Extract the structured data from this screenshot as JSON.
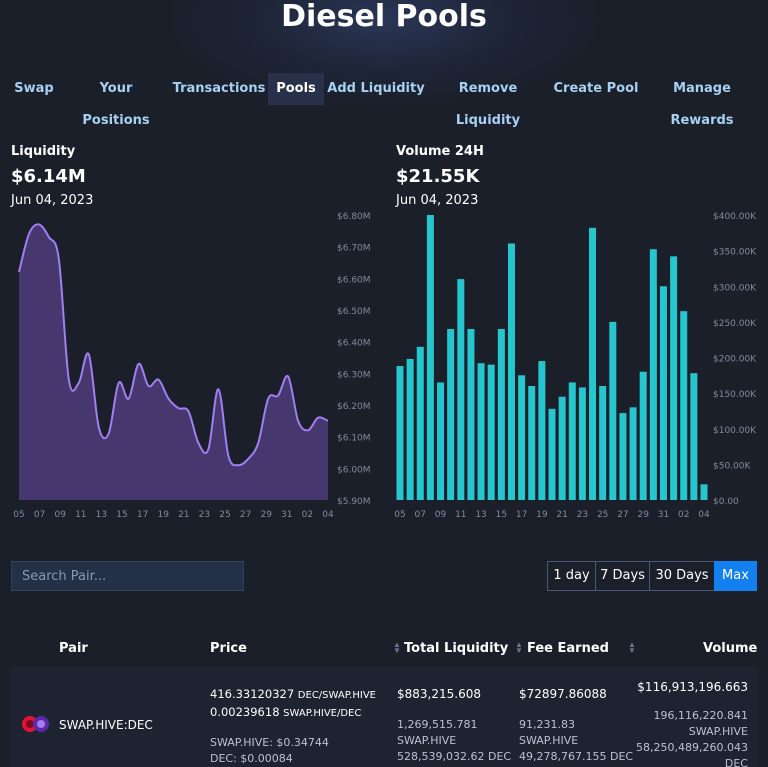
{
  "page": {
    "title": "Diesel Pools"
  },
  "nav": {
    "tabs": [
      {
        "label": "Swap"
      },
      {
        "label": "Your Positions"
      },
      {
        "label": "Transactions"
      },
      {
        "label": "Pools",
        "active": true
      },
      {
        "label": "Add Liquidity"
      },
      {
        "label": "Remove Liquidity"
      },
      {
        "label": "Create Pool"
      },
      {
        "label": "Manage Rewards"
      }
    ]
  },
  "liquidity": {
    "label": "Liquidity",
    "value": "$6.14M",
    "date": "Jun 04, 2023"
  },
  "volume": {
    "label": "Volume 24H",
    "value": "$21.55K",
    "date": "Jun 04, 2023"
  },
  "colors": {
    "accent": "#1380f0",
    "area_line": "#a07ff0",
    "area_fill": "#46376e",
    "bar": "#26c6cf",
    "nav_text": "#a7d0f2"
  },
  "chart_data": [
    {
      "type": "area",
      "title": "Liquidity",
      "x_tick_labels": [
        "05",
        "07",
        "09",
        "11",
        "13",
        "15",
        "17",
        "19",
        "21",
        "23",
        "25",
        "27",
        "29",
        "31",
        "02",
        "04"
      ],
      "y_tick_labels": [
        "$5.90M",
        "$6.00M",
        "$6.10M",
        "$6.20M",
        "$6.30M",
        "$6.40M",
        "$6.50M",
        "$6.60M",
        "$6.70M",
        "$6.80M"
      ],
      "ylim": [
        5.9,
        6.8
      ],
      "y_unit": "$M",
      "values": [
        6.62,
        6.74,
        6.77,
        6.73,
        6.66,
        6.28,
        6.27,
        6.36,
        6.13,
        6.11,
        6.27,
        6.22,
        6.33,
        6.26,
        6.28,
        6.22,
        6.19,
        6.18,
        6.08,
        6.06,
        6.25,
        6.04,
        6.01,
        6.03,
        6.08,
        6.22,
        6.23,
        6.29,
        6.15,
        6.12,
        6.16,
        6.15
      ]
    },
    {
      "type": "bar",
      "title": "Volume 24H",
      "x_tick_labels": [
        "05",
        "07",
        "09",
        "11",
        "13",
        "15",
        "17",
        "19",
        "21",
        "23",
        "25",
        "27",
        "29",
        "31",
        "02",
        "04"
      ],
      "y_tick_labels": [
        "$0.00",
        "$50.00K",
        "$100.00K",
        "$150.00K",
        "$200.00K",
        "$250.00K",
        "$300.00K",
        "$350.00K",
        "$400.00K"
      ],
      "ylim": [
        0,
        400
      ],
      "y_unit": "$K",
      "values": [
        188,
        198,
        215,
        400,
        165,
        240,
        310,
        240,
        192,
        190,
        240,
        360,
        175,
        160,
        195,
        128,
        145,
        165,
        158,
        382,
        160,
        250,
        122,
        130,
        180,
        352,
        300,
        342,
        265,
        178,
        22
      ]
    }
  ],
  "search": {
    "placeholder": "Search Pair..."
  },
  "range": {
    "options": [
      {
        "label": "1 day"
      },
      {
        "label": "7 Days"
      },
      {
        "label": "30 Days"
      },
      {
        "label": "Max",
        "active": true
      }
    ]
  },
  "table": {
    "headers": {
      "pair": "Pair",
      "price": "Price",
      "total_liquidity": "Total Liquidity",
      "fee_earned": "Fee Earned",
      "volume": "Volume"
    },
    "rows": [
      {
        "pair": "SWAP.HIVE:DEC",
        "price_line1_num": "416.33120327",
        "price_line1_unit": "DEC/SWAP.HIVE",
        "price_line2_num": "0.00239618",
        "price_line2_unit": "SWAP.HIVE/DEC",
        "price_usd1": "SWAP.HIVE: $0.34744",
        "price_usd2": "DEC: $0.00084",
        "total_liquidity": "$883,215.608",
        "liq_amount1": "1,269,515.781",
        "liq_token1": "SWAP.HIVE",
        "liq_amount2": "528,539,032.62 DEC",
        "fee_earned": "$72897.86088",
        "fee_amount1": "91,231.83",
        "fee_token1": "SWAP.HIVE",
        "fee_amount2": "49,278,767.155 DEC",
        "volume": "$116,913,196.663",
        "vol_amount1": "196,116,220.841",
        "vol_token1": "SWAP.HIVE",
        "vol_amount2": "58,250,489,260.043",
        "vol_token2": "DEC"
      }
    ]
  }
}
